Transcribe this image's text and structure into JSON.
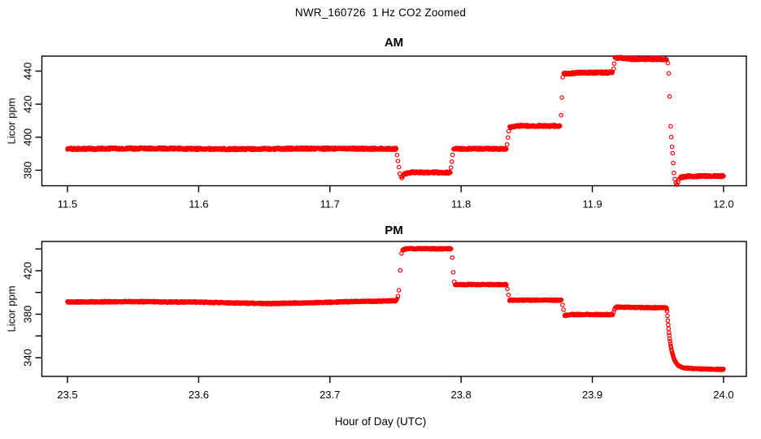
{
  "figure": {
    "title": "NWR_160726  1 Hz CO2 Zoomed",
    "xlabel": "Hour of Day (UTC)",
    "background": "#ffffff",
    "axis_color": "#000000",
    "point_color": "#ff0000"
  },
  "chart_data": [
    {
      "type": "scatter",
      "panel": "AM",
      "title": "AM",
      "ylabel": "Licor ppm",
      "marker": "open-circle",
      "color": "#ff0000",
      "grid": false,
      "legend": "none",
      "sample_interval_hr": 0.0002778,
      "xlim": [
        11.4805,
        12.0174
      ],
      "ylim": [
        370.6,
        449.1
      ],
      "xticks": [
        11.5,
        11.6,
        11.7,
        11.8,
        11.9,
        12.0
      ],
      "xtick_labels": [
        "11.5",
        "11.6",
        "11.7",
        "11.8",
        "11.9",
        "12.0"
      ],
      "yticks": [
        380,
        400,
        420,
        440
      ],
      "ytick_labels": [
        "380",
        "400",
        "420",
        "440"
      ],
      "segments": [
        {
          "t0": 11.5,
          "t1": 11.7506,
          "v": 393.0,
          "noise": 0.6,
          "drift": [
            [
              11.5,
              392.9
            ],
            [
              11.56,
              393.2
            ],
            [
              11.62,
              392.8
            ],
            [
              11.68,
              393.1
            ],
            [
              11.7506,
              393.0
            ]
          ]
        },
        {
          "t0": 11.7565,
          "t1": 11.792,
          "v": 378.6,
          "noise": 0.55,
          "drift": [
            [
              11.7565,
              377.6
            ],
            [
              11.762,
              378.7
            ],
            [
              11.792,
              378.6
            ]
          ]
        },
        {
          "t0": 11.7942,
          "t1": 11.8345,
          "v": 393.0,
          "noise": 0.55
        },
        {
          "t0": 11.837,
          "t1": 11.8755,
          "v": 406.8,
          "noise": 0.55,
          "drift": [
            [
              11.837,
              405.9
            ],
            [
              11.843,
              406.9
            ],
            [
              11.8755,
              406.8
            ]
          ]
        },
        {
          "t0": 11.8782,
          "t1": 11.9155,
          "v": 438.9,
          "noise": 0.6,
          "drift": [
            [
              11.8782,
              438.4
            ],
            [
              11.89,
              439.0
            ],
            [
              11.9155,
              439.2
            ]
          ]
        },
        {
          "t0": 11.9172,
          "t1": 11.9568,
          "v": 447.5,
          "noise": 0.6,
          "drift": [
            [
              11.9172,
              447.8
            ],
            [
              11.922,
              448.0
            ],
            [
              11.93,
              447.3
            ],
            [
              11.9568,
              447.3
            ]
          ]
        },
        {
          "t0": 11.967,
          "t1": 12.0002,
          "v": 376.4,
          "noise": 0.55,
          "drift": [
            [
              11.967,
              375.7
            ],
            [
              11.974,
              376.4
            ],
            [
              12.0,
              376.5
            ]
          ]
        }
      ],
      "points": [
        [
          11.7512,
          389.2
        ],
        [
          11.7519,
          385.6
        ],
        [
          11.7526,
          381.9
        ],
        [
          11.7533,
          377.9
        ],
        [
          11.7541,
          376.1
        ],
        [
          11.7549,
          375.3
        ],
        [
          11.7557,
          376.4
        ],
        [
          11.7923,
          381.6
        ],
        [
          11.7929,
          385.2
        ],
        [
          11.7935,
          389.3
        ],
        [
          11.8351,
          395.6
        ],
        [
          11.8357,
          399.8
        ],
        [
          11.8363,
          403.6
        ],
        [
          11.8762,
          413.3
        ],
        [
          11.8768,
          424.0
        ],
        [
          11.8775,
          436.3
        ],
        [
          11.9162,
          441.5
        ],
        [
          11.9167,
          444.5
        ],
        [
          11.9576,
          444.8
        ],
        [
          11.9582,
          438.6
        ],
        [
          11.9589,
          424.7
        ],
        [
          11.9597,
          406.6
        ],
        [
          11.9602,
          400.1
        ],
        [
          11.9607,
          394.2
        ],
        [
          11.9612,
          390.3
        ],
        [
          11.9617,
          384.4
        ],
        [
          11.9622,
          378.4
        ],
        [
          11.9629,
          374.6
        ],
        [
          11.9637,
          372.2
        ],
        [
          11.9645,
          371.3
        ],
        [
          11.9653,
          372.6
        ],
        [
          11.9661,
          374.6
        ]
      ]
    },
    {
      "type": "scatter",
      "panel": "PM",
      "title": "PM",
      "ylabel": "Licor ppm",
      "marker": "open-circle",
      "color": "#ff0000",
      "grid": false,
      "legend": "none",
      "sample_interval_hr": 0.0002778,
      "xlim": [
        23.4805,
        24.0174
      ],
      "ylim": [
        322.8,
        446.9
      ],
      "xticks": [
        23.5,
        23.6,
        23.7,
        23.8,
        23.9,
        24.0
      ],
      "xtick_labels": [
        "23.5",
        "23.6",
        "23.7",
        "23.8",
        "23.9",
        "24.0"
      ],
      "yticks": [
        340,
        360,
        380,
        400,
        420,
        440
      ],
      "ytick_labels": [
        "340",
        "",
        "380",
        "",
        "420",
        ""
      ],
      "segments": [
        {
          "t0": 23.5,
          "t1": 23.7506,
          "v": 391.3,
          "noise": 0.6,
          "drift": [
            [
              23.5,
              391.2
            ],
            [
              23.55,
              391.6
            ],
            [
              23.6,
              391.1
            ],
            [
              23.628,
              390.3
            ],
            [
              23.655,
              389.8
            ],
            [
              23.682,
              390.4
            ],
            [
              23.71,
              391.4
            ],
            [
              23.735,
              391.9
            ],
            [
              23.7506,
              392.5
            ]
          ]
        },
        {
          "t0": 23.7554,
          "t1": 23.7926,
          "v": 440.1,
          "noise": 0.6,
          "drift": [
            [
              23.7554,
              439.4
            ],
            [
              23.76,
              440.3
            ],
            [
              23.7926,
              440.1
            ]
          ]
        },
        {
          "t0": 23.7954,
          "t1": 23.8346,
          "v": 407.3,
          "noise": 0.55
        },
        {
          "t0": 23.8369,
          "t1": 23.8766,
          "v": 392.9,
          "noise": 0.55
        },
        {
          "t0": 23.8789,
          "t1": 23.9157,
          "v": 379.6,
          "noise": 0.55,
          "drift": [
            [
              23.8789,
              378.9
            ],
            [
              23.885,
              379.7
            ],
            [
              23.9157,
              379.6
            ]
          ]
        },
        {
          "t0": 23.9176,
          "t1": 23.9566,
          "v": 386.2,
          "noise": 0.55,
          "drift": [
            [
              23.9176,
              386.6
            ],
            [
              23.93,
              386.3
            ],
            [
              23.9566,
              385.9
            ]
          ]
        },
        {
          "type": "decay",
          "t0": 23.957,
          "t1": 23.9725,
          "from": 383.0,
          "to": 329.9,
          "tau": 0.003,
          "noise": 0.35
        },
        {
          "t0": 23.9725,
          "t1": 24.0002,
          "v": 329.8,
          "noise": 0.5,
          "drift": [
            [
              23.9725,
              330.4
            ],
            [
              23.981,
              329.7
            ],
            [
              24.0,
              329.2
            ]
          ]
        }
      ],
      "points": [
        [
          23.7513,
          394.2
        ],
        [
          23.7519,
          396.5
        ],
        [
          23.7526,
          402.0
        ],
        [
          23.7536,
          420.3
        ],
        [
          23.7546,
          435.8
        ],
        [
          23.7933,
          432.0
        ],
        [
          23.794,
          418.5
        ],
        [
          23.7947,
          409.9
        ],
        [
          23.8353,
          403.2
        ],
        [
          23.8361,
          397.8
        ],
        [
          23.8773,
          388.6
        ],
        [
          23.8781,
          384.2
        ],
        [
          23.9163,
          381.9
        ],
        [
          23.9169,
          384.4
        ],
        [
          23.9568,
          384.8
        ]
      ]
    }
  ]
}
